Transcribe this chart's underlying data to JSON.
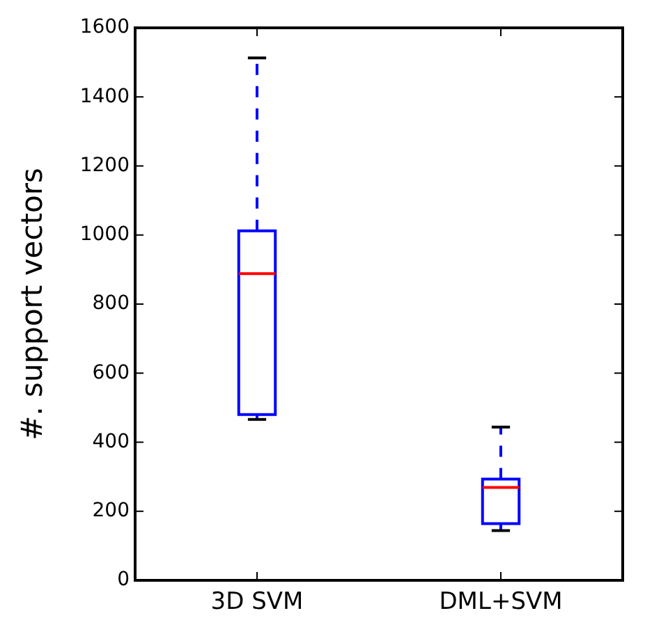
{
  "chart_data": {
    "type": "box",
    "ylabel": "#. support vectors",
    "categories": [
      "3D SVM",
      "DML+SVM"
    ],
    "series": [
      {
        "color": "#0000ff",
        "boxes": [
          {
            "low": 466,
            "q1": 480,
            "median": 888,
            "q3": 1012,
            "high": 1513
          },
          {
            "low": 144,
            "q1": 164,
            "median": 269,
            "q3": 293,
            "high": 444
          }
        ]
      }
    ],
    "ylim": [
      0,
      1600
    ],
    "yticks": [
      0,
      200,
      400,
      600,
      800,
      1000,
      1200,
      1400,
      1600
    ],
    "grid": false,
    "legend": false
  }
}
